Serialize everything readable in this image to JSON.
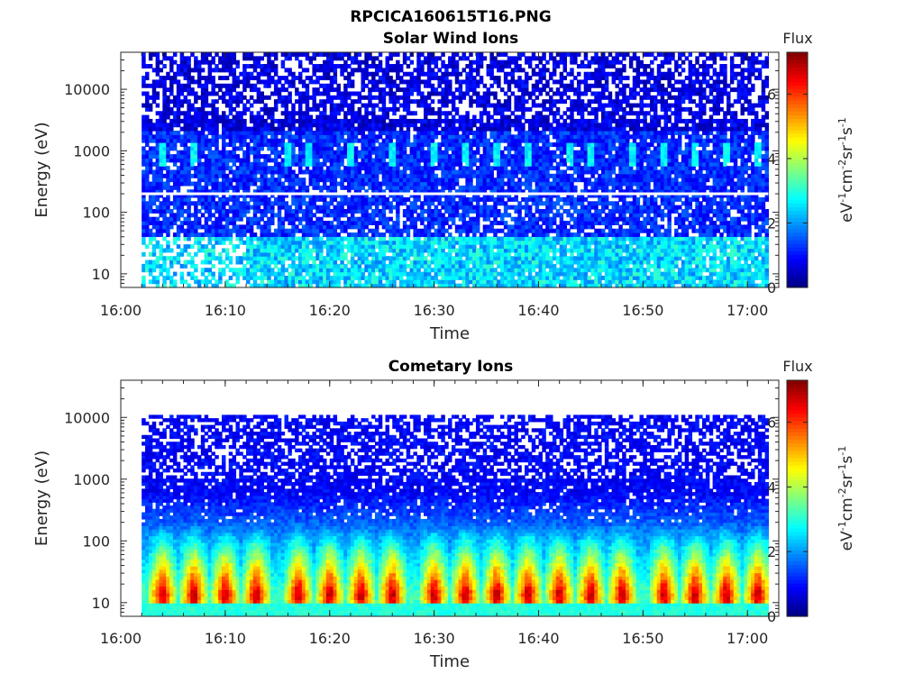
{
  "figure": {
    "title": "RPCICA160615T16.PNG"
  },
  "chart_data": [
    {
      "type": "heatmap",
      "title": "Solar Wind Ions",
      "xlabel": "Time",
      "ylabel": "Energy (eV)",
      "x_ticks": [
        "16:00",
        "16:10",
        "16:20",
        "16:30",
        "16:40",
        "16:50",
        "17:00"
      ],
      "xlim": [
        "16:00",
        "17:03"
      ],
      "data_x_range": [
        "16:02",
        "17:02"
      ],
      "y_scale": "log",
      "y_ticks": [
        10,
        100,
        1000,
        10000
      ],
      "ylim": [
        6,
        40000
      ],
      "colorbar": {
        "label": "Flux",
        "unit": "eV-1cm-2sr-1s-1",
        "range": [
          0,
          7.3
        ],
        "ticks": [
          0,
          2,
          4,
          6
        ],
        "colormap": "jet"
      },
      "features": {
        "typical_flux": 1.2,
        "low_energy_band_flux": 2.6,
        "gap_line_energy_eV": 200,
        "spike_energies_eV": [
          700,
          1300
        ],
        "spike_times": [
          "16:04",
          "16:07",
          "16:16",
          "16:18",
          "16:22",
          "16:26",
          "16:30",
          "16:33",
          "16:36",
          "16:39",
          "16:43",
          "16:45",
          "16:49",
          "16:52",
          "16:55",
          "16:58",
          "17:01"
        ]
      }
    },
    {
      "type": "heatmap",
      "title": "Cometary Ions",
      "xlabel": "Time",
      "ylabel": "Energy (eV)",
      "x_ticks": [
        "16:00",
        "16:10",
        "16:20",
        "16:30",
        "16:40",
        "16:50",
        "17:00"
      ],
      "xlim": [
        "16:00",
        "17:03"
      ],
      "data_x_range": [
        "16:02",
        "17:02"
      ],
      "y_scale": "log",
      "y_ticks": [
        10,
        100,
        1000,
        10000
      ],
      "ylim": [
        6,
        40000
      ],
      "data_y_max_eV": 11000,
      "colorbar": {
        "label": "Flux",
        "unit": "eV-1cm-2sr-1s-1",
        "range": [
          0,
          7.3
        ],
        "ticks": [
          0,
          2,
          4,
          6
        ],
        "colormap": "jet"
      },
      "features": {
        "peak_energy_eV": 14,
        "peak_flux": 6.2,
        "peak_times": [
          "16:04",
          "16:07",
          "16:10",
          "16:13",
          "16:17",
          "16:20",
          "16:23",
          "16:26",
          "16:30",
          "16:33",
          "16:36",
          "16:39",
          "16:42",
          "16:45",
          "16:48",
          "16:52",
          "16:55",
          "16:58",
          "17:01"
        ]
      }
    }
  ]
}
